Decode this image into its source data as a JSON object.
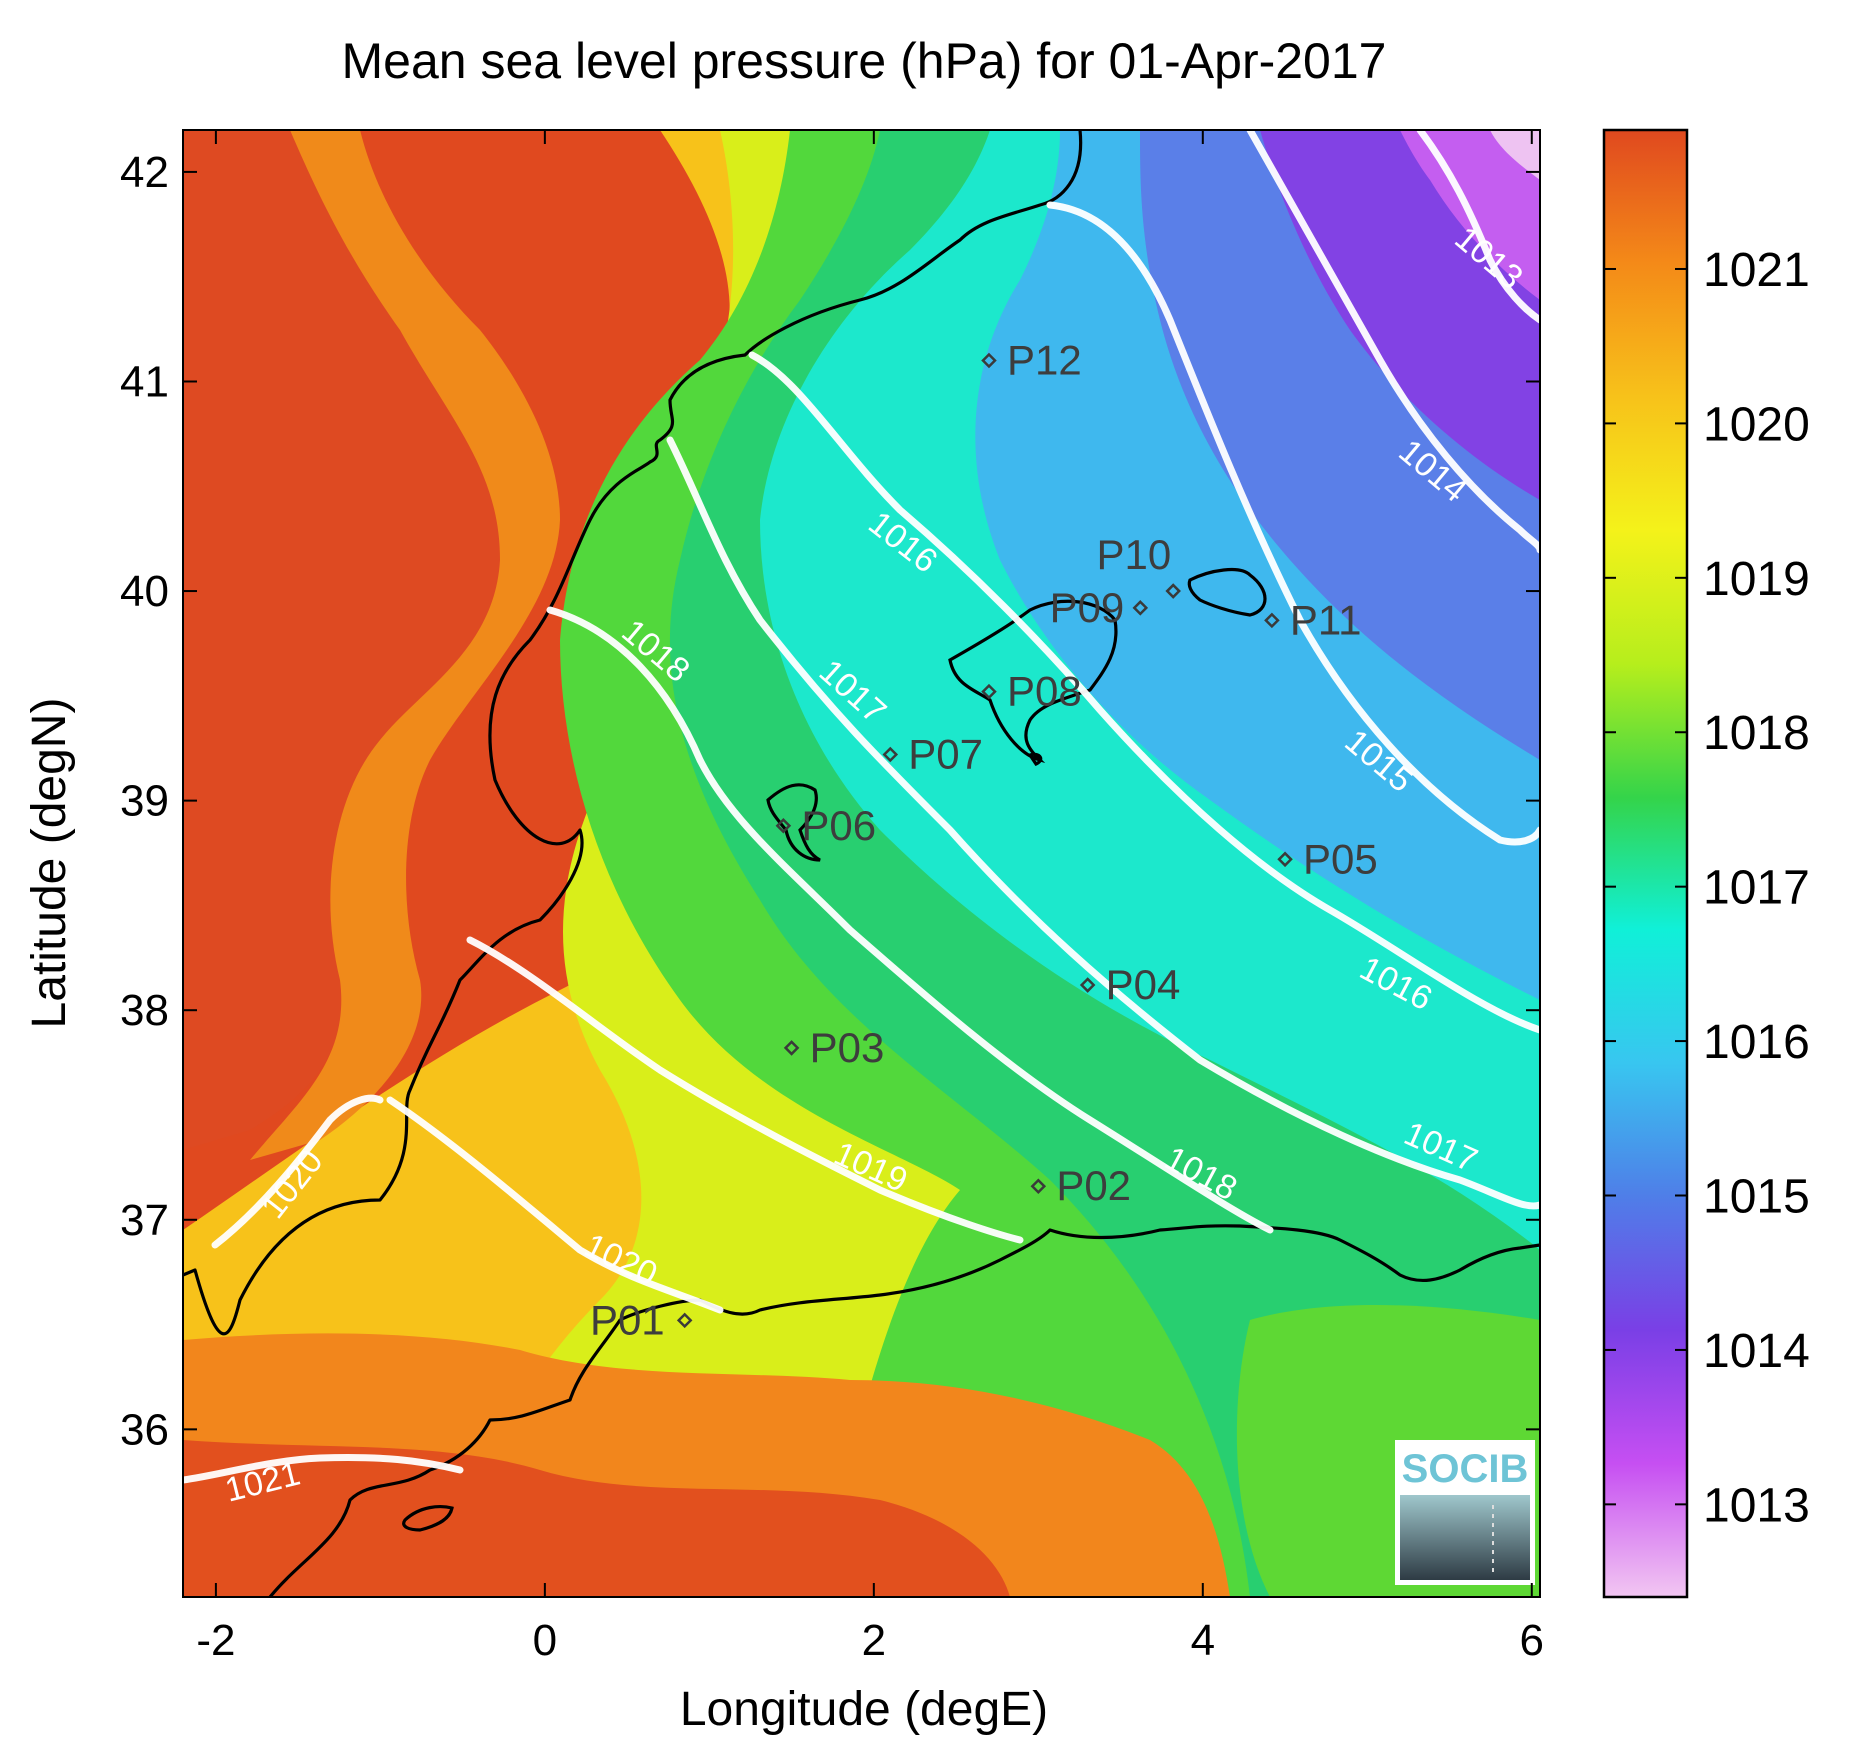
{
  "title": "Mean sea level pressure (hPa) for 01-Apr-2017",
  "xlabel": "Longitude (degE)",
  "ylabel": "Latitude (degN)",
  "logo_text": "SOCIB",
  "chart_data": {
    "type": "heatmap",
    "xlim": [
      -2.2,
      6.05
    ],
    "ylim": [
      35.2,
      42.2
    ],
    "x_ticks": [
      -2,
      0,
      2,
      4,
      6
    ],
    "y_ticks": [
      36,
      37,
      38,
      39,
      40,
      41,
      42
    ],
    "colorbar": {
      "range": [
        1012.4,
        1021.9
      ],
      "ticks": [
        1013,
        1014,
        1015,
        1016,
        1017,
        1018,
        1019,
        1020,
        1021
      ],
      "colormap": [
        "#f2c6f2",
        "#c64ff2",
        "#7a3fe6",
        "#4f7ee8",
        "#38c6f0",
        "#10f0d8",
        "#34d44a",
        "#b6ee1c",
        "#f4f21a",
        "#f7c21a",
        "#f48a18",
        "#e0491f"
      ]
    },
    "contours": [
      {
        "level": 1013,
        "label": "1013"
      },
      {
        "level": 1014,
        "label": "1014"
      },
      {
        "level": 1015,
        "label": "1015"
      },
      {
        "level": 1016,
        "label": "1016"
      },
      {
        "level": 1017,
        "label": "1017"
      },
      {
        "level": 1018,
        "label": "1018"
      },
      {
        "level": 1019,
        "label": "1019"
      },
      {
        "level": 1020,
        "label": "1020"
      },
      {
        "level": 1021,
        "label": "1021"
      }
    ],
    "stations": [
      {
        "name": "P01",
        "lon": 0.85,
        "lat": 36.52
      },
      {
        "name": "P02",
        "lon": 3.0,
        "lat": 37.16
      },
      {
        "name": "P03",
        "lon": 1.5,
        "lat": 37.82
      },
      {
        "name": "P04",
        "lon": 3.3,
        "lat": 38.12
      },
      {
        "name": "P05",
        "lon": 4.5,
        "lat": 38.72
      },
      {
        "name": "P06",
        "lon": 1.45,
        "lat": 38.88
      },
      {
        "name": "P07",
        "lon": 2.1,
        "lat": 39.22
      },
      {
        "name": "P08",
        "lon": 2.7,
        "lat": 39.52
      },
      {
        "name": "P09",
        "lon": 3.62,
        "lat": 39.92
      },
      {
        "name": "P10",
        "lon": 3.82,
        "lat": 40.0
      },
      {
        "name": "P11",
        "lon": 4.42,
        "lat": 39.86
      },
      {
        "name": "P12",
        "lon": 2.7,
        "lat": 41.1
      }
    ]
  }
}
